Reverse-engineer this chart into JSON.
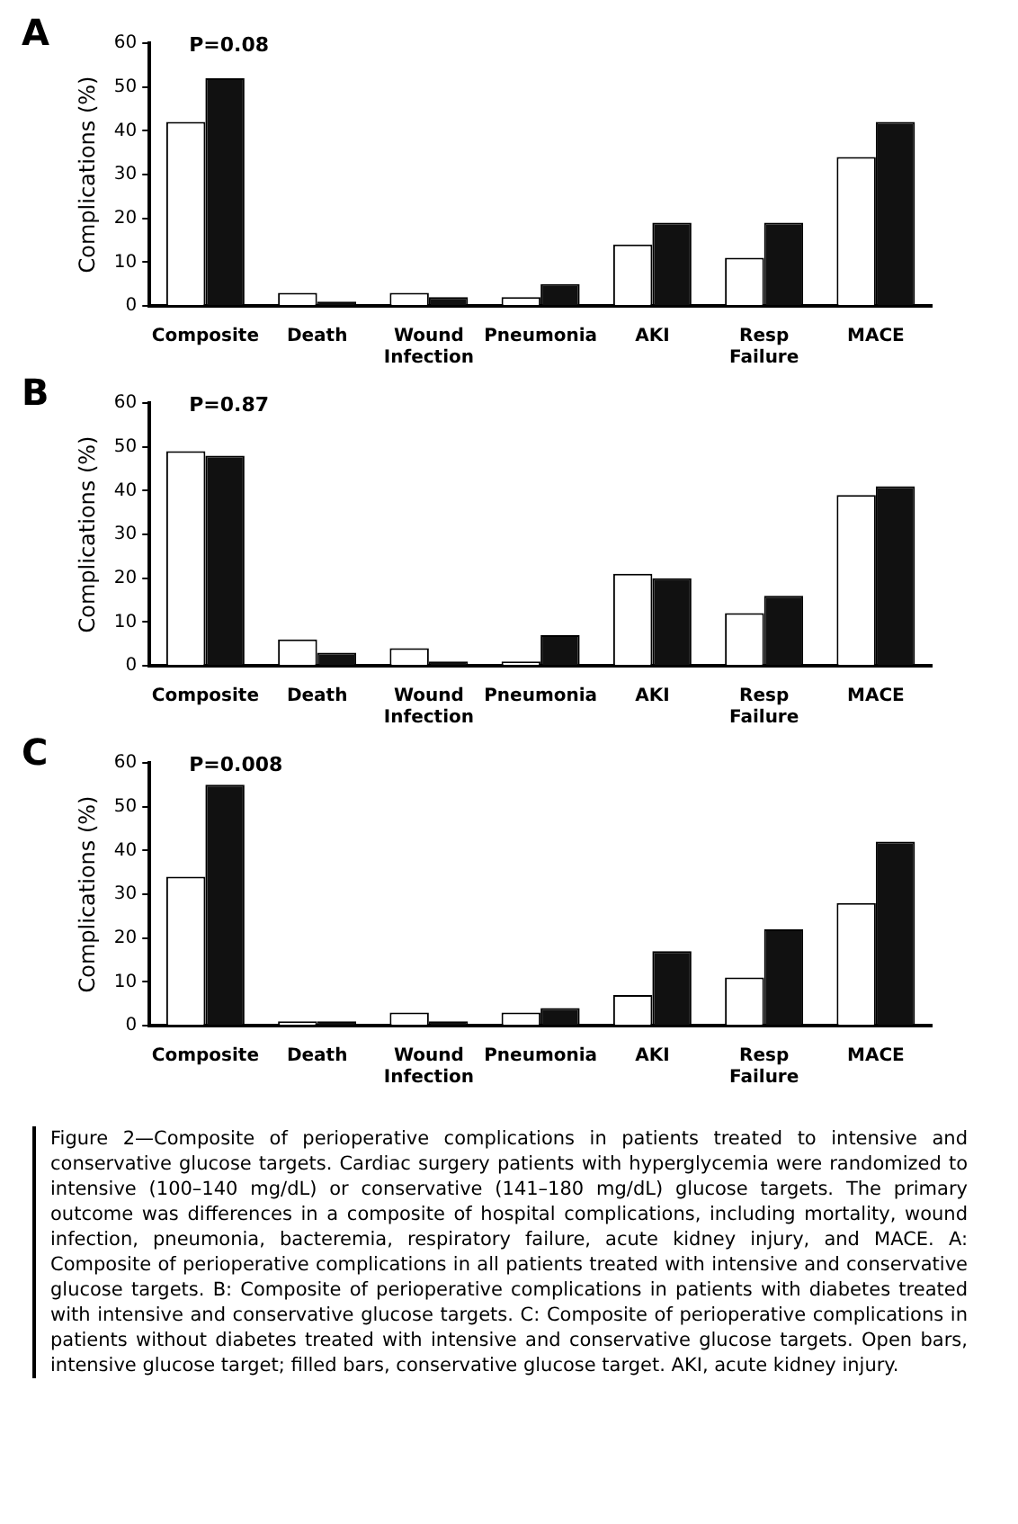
{
  "chart_data": [
    {
      "type": "bar",
      "title": "A",
      "ylabel": "Complications (%)",
      "categories": [
        "Composite",
        "Death",
        "Wound\nInfection",
        "Pneumonia",
        "AKI",
        "Resp\nFailure",
        "MACE"
      ],
      "series": [
        {
          "color": "#ffffff",
          "values": [
            42,
            3,
            3,
            2,
            14,
            11,
            34
          ]
        },
        {
          "color": "#111111",
          "values": [
            52,
            1,
            2,
            5,
            19,
            19,
            42
          ]
        }
      ],
      "ylim": [
        0,
        60
      ],
      "yticks": [
        0,
        10,
        20,
        30,
        40,
        50,
        60
      ],
      "grid": false,
      "legend": false,
      "annotations": [
        "P=0.08"
      ]
    },
    {
      "type": "bar",
      "title": "B",
      "ylabel": "Complications (%)",
      "categories": [
        "Composite",
        "Death",
        "Wound\nInfection",
        "Pneumonia",
        "AKI",
        "Resp\nFailure",
        "MACE"
      ],
      "series": [
        {
          "color": "#ffffff",
          "values": [
            49,
            6,
            4,
            1,
            21,
            12,
            39
          ]
        },
        {
          "color": "#111111",
          "values": [
            48,
            3,
            1,
            7,
            20,
            16,
            41
          ]
        }
      ],
      "ylim": [
        0,
        60
      ],
      "yticks": [
        0,
        10,
        20,
        30,
        40,
        50,
        60
      ],
      "grid": false,
      "legend": false,
      "annotations": [
        "P=0.87"
      ]
    },
    {
      "type": "bar",
      "title": "C",
      "ylabel": "Complications (%)",
      "categories": [
        "Composite",
        "Death",
        "Wound\nInfection",
        "Pneumonia",
        "AKI",
        "Resp\nFailure",
        "MACE"
      ],
      "series": [
        {
          "color": "#ffffff",
          "values": [
            34,
            1,
            3,
            3,
            7,
            11,
            28
          ]
        },
        {
          "color": "#111111",
          "values": [
            55,
            1,
            1,
            4,
            17,
            22,
            42
          ]
        }
      ],
      "ylim": [
        0,
        60
      ],
      "yticks": [
        0,
        10,
        20,
        30,
        40,
        50,
        60
      ],
      "grid": false,
      "legend": false,
      "annotations": [
        "P=0.008",
        "Figure 2—Composite of perioperative complications in patients treated to intensive and conservative glucose targets. Cardiac surgery patients with hyperglycemia were randomized to intensive (100–140 mg/dL) or conservative (141–180 mg/dL) glucose targets. The primary outcome was differences in a composite of hospital complications, including mortality, wound infection, pneumonia, bacteremia, respiratory failure, acute kidney injury, and MACE. A: Composite of perioperative complications in all patients treated with intensive and conservative glucose targets. B: Composite of perioperative complications in patients with diabetes treated with intensive and conservative glucose targets. C: Composite of perioperative complications in patients without diabetes treated with intensive and conservative glucose targets. Open bars, intensive glucose target; filled bars, conservative glucose target. AKI, acute kidney injury."
      ]
    }
  ]
}
